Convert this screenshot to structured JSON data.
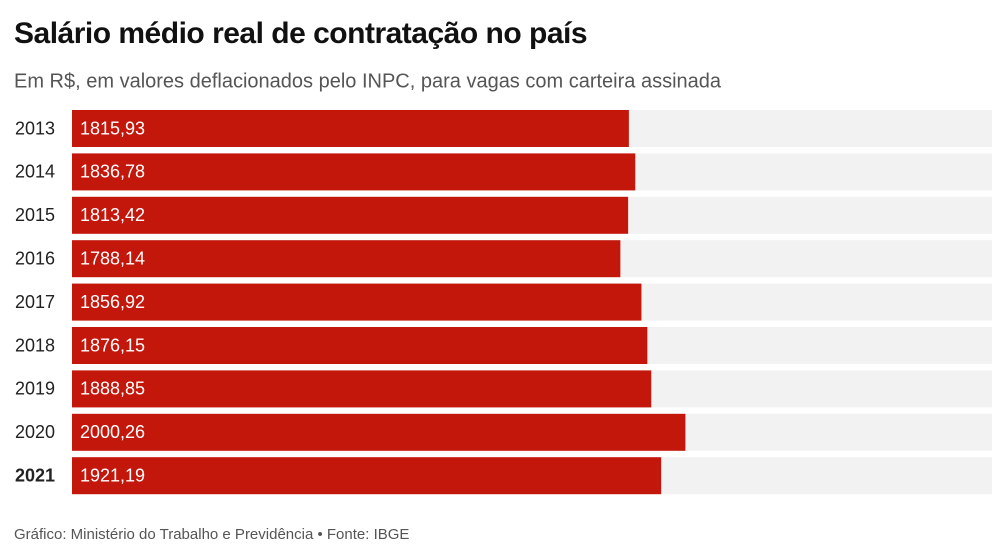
{
  "chart_data": {
    "type": "hbar",
    "title": "Salário médio real de contratação no país",
    "subtitle": "Em R$, em valores deflacionados pelo INPC, para vagas com carteira assinada",
    "categories": [
      "2013",
      "2014",
      "2015",
      "2016",
      "2017",
      "2018",
      "2019",
      "2020",
      "2021"
    ],
    "values": [
      1815.93,
      1836.78,
      1813.42,
      1788.14,
      1856.92,
      1876.15,
      1888.85,
      2000.26,
      1921.19
    ],
    "value_labels": [
      "1815,93",
      "1836,78",
      "1813,42",
      "1788,14",
      "1856,92",
      "1876,15",
      "1888,85",
      "2000,26",
      "1921,19"
    ],
    "color": "#c4170c",
    "xlim": [
      0,
      3000
    ],
    "source": "Gráfico: Ministério do Trabalho e Previdência • Fonte: IBGE"
  }
}
